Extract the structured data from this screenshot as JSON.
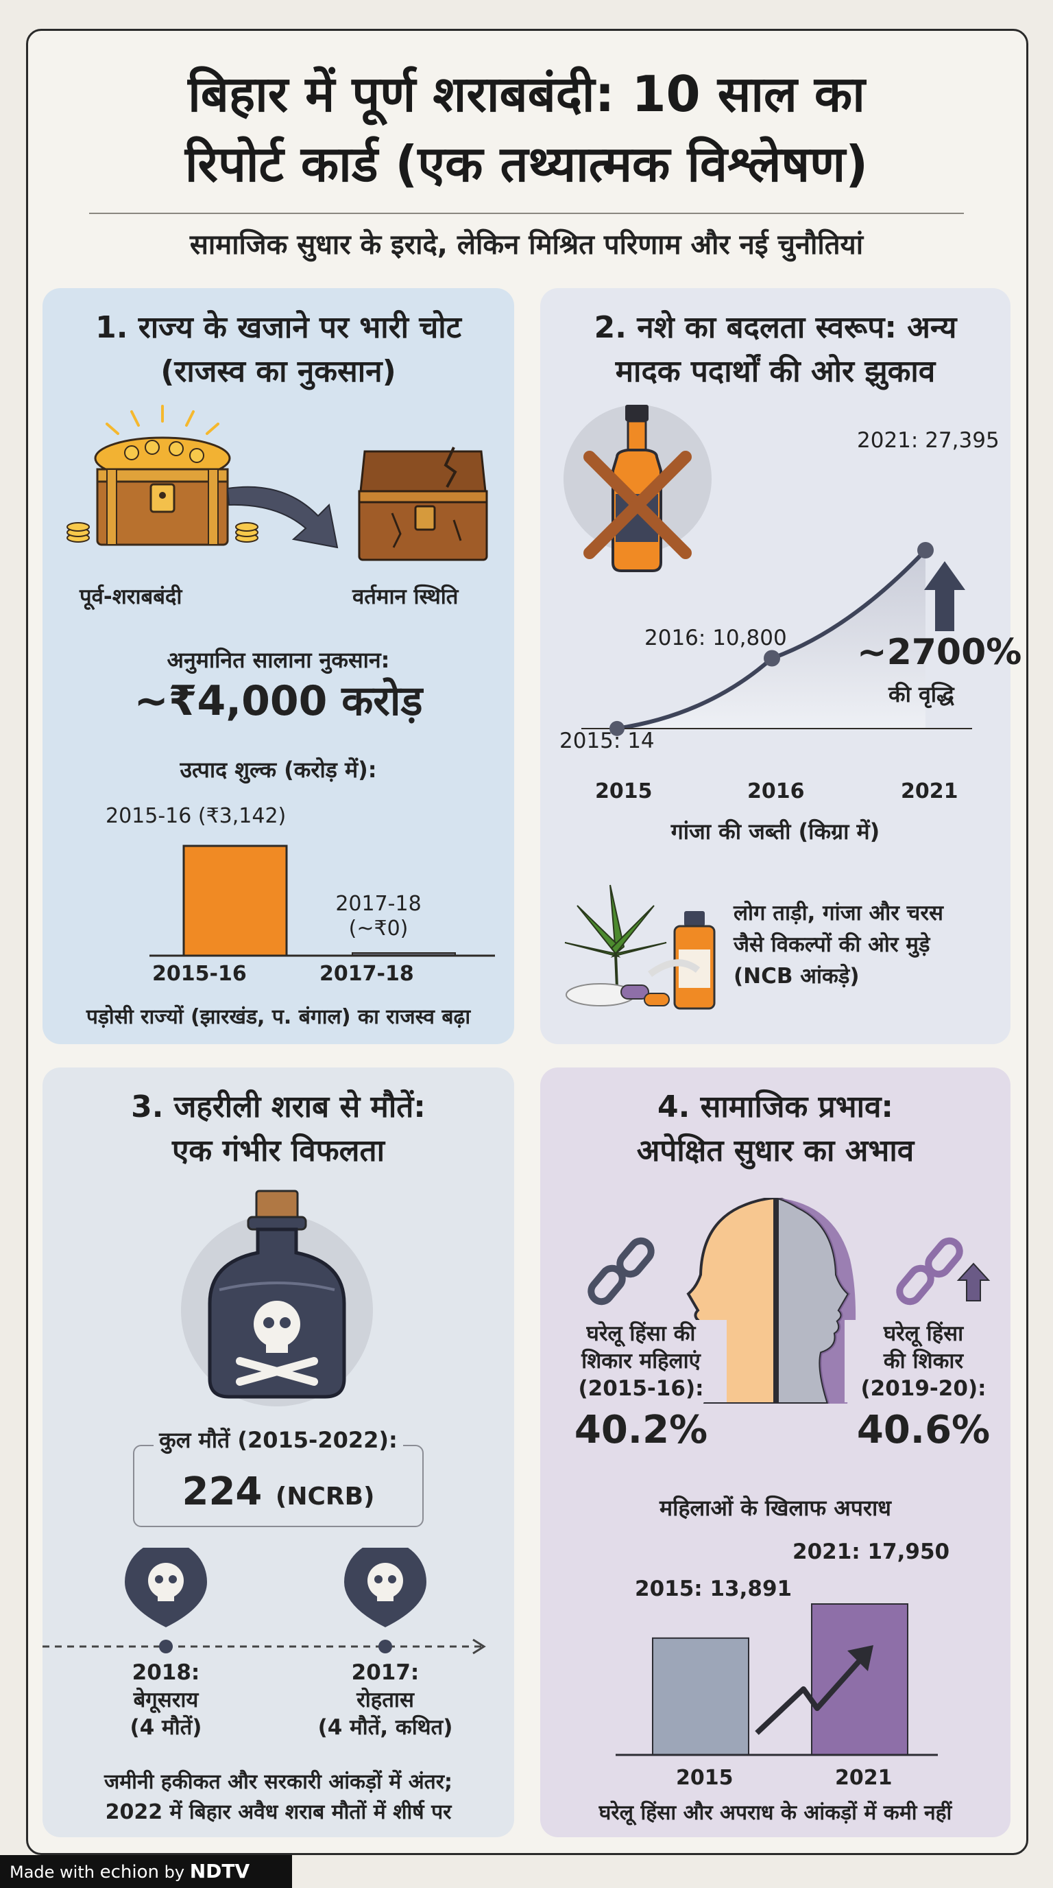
{
  "title_line1": "बिहार में पूर्ण शराबबंदी: 10 साल का",
  "title_line2": "रिपोर्ट कार्ड (एक तथ्यात्मक विश्लेषण)",
  "subtitle": "सामाजिक सुधार के इरादे, लेकिन मिश्रित परिणाम और नई चुनौतियां",
  "panel1": {
    "title_line1": "1. राज्य के खजाने पर भारी चोट",
    "title_line2": "(राजस्व का नुकसान)",
    "before_label": "पूर्व-शराबबंदी",
    "after_label": "वर्तमान स्थिति",
    "loss_label": "अनुमानित सालाना नुकसान:",
    "loss_value": "~₹4,000 करोड़",
    "chart_title": "उत्पाद शुल्क (करोड़ में):",
    "bar1_label": "2015-16 (₹3,142)",
    "bar2_label_line1": "2017-18",
    "bar2_label_line2": "(~₹0)",
    "footnote": "पड़ोसी राज्यों (झारखंड, प. बंगाल) का राजस्व बढ़ा"
  },
  "panel2": {
    "title_line1": "2. नशे का बदलता स्वरूप: अन्य",
    "title_line2": "मादक पदार्थों की ओर झुकाव",
    "point_labels": [
      "2015: 14",
      "2016: 10,800",
      "2021: 27,395"
    ],
    "growth_value": "~2700%",
    "growth_label": "की वृद्धि",
    "axis_title": "गांजा की जब्ती (किग्रा में)",
    "note_line1": "लोग ताड़ी, गांजा और चरस",
    "note_line2": "जैसे विकल्पों की ओर मुड़े",
    "note_line3": "(NCB आंकड़े)"
  },
  "panel3": {
    "title_line1": "3. जहरीली शराब से मौतें:",
    "title_line2": "एक गंभीर विफलता",
    "total_label": "कुल मौतें (2015-2022):",
    "total_value": "224",
    "total_source": "(NCRB)",
    "event1_line1": "2018:",
    "event1_line2": "बेगूसराय",
    "event1_line3": "(4 मौतें)",
    "event2_line1": "2017:",
    "event2_line2": "रोहतास",
    "event2_line3": "(4 मौतें, कथित)",
    "footnote_line1": "जमीनी हकीकत और सरकारी आंकड़ों में अंतर;",
    "footnote_line2": "2022 में बिहार अवैध शराब मौतों में शीर्ष पर"
  },
  "panel4": {
    "title_line1": "4. सामाजिक प्रभाव:",
    "title_line2": "अपेक्षित सुधार का अभाव",
    "left_label_line1": "घरेलू हिंसा की",
    "left_label_line2": "शिकार महिलाएं",
    "left_label_line3": "(2015-16):",
    "left_value": "40.2%",
    "right_label_line1": "घरेलू हिंसा",
    "right_label_line2": "की शिकार",
    "right_label_line3": "(2019-20):",
    "right_value": "40.6%",
    "chart_title": "महिलाओं के खिलाफ अपराध",
    "bar1_label": "2015: 13,891",
    "bar2_label": "2021: 17,950",
    "footnote": "घरेलू हिंसा और अपराध के आंकड़ों में कमी नहीं"
  },
  "footer": {
    "made_with": "Made with",
    "brand": "echion",
    "by": "by",
    "ndtv": "NDTV"
  },
  "colors": {
    "orange": "#f08a24",
    "navy": "#3e4459",
    "slate_bar": "#9da6b8",
    "purple_bar": "#8e6fa8"
  },
  "chart_data": [
    {
      "type": "bar",
      "title": "उत्पाद शुल्क (करोड़ में):",
      "categories": [
        "2015-16",
        "2017-18"
      ],
      "values": [
        3142,
        0
      ]
    },
    {
      "type": "line",
      "title": "गांजा की जब्ती (किग्रा में)",
      "x": [
        "2015",
        "2016",
        "2021"
      ],
      "values": [
        14,
        10800,
        27395
      ]
    },
    {
      "type": "bar",
      "title": "महिलाओं के खिलाफ अपराध",
      "categories": [
        "2015",
        "2021"
      ],
      "values": [
        13891,
        17950
      ]
    }
  ]
}
